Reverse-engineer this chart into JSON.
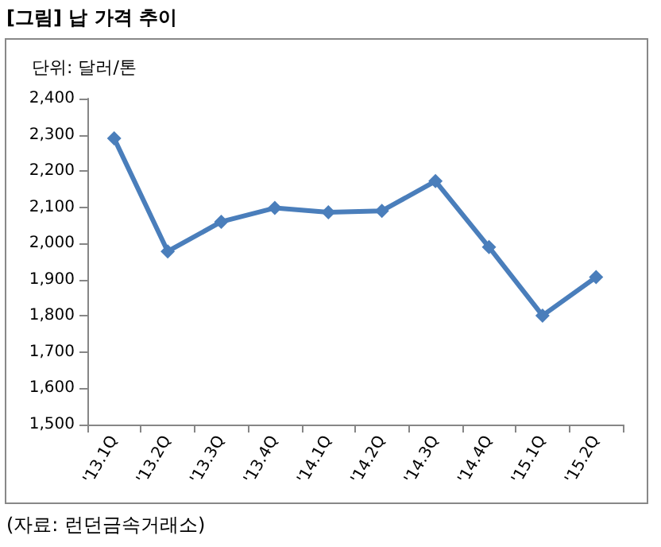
{
  "chart_data": {
    "type": "line",
    "title": "[그림] 납 가격 추이",
    "subtitle": "단위: 달러/톤",
    "annotations": [
      "(자료: 런던금속거래소)"
    ],
    "categories": [
      "'13.1Q",
      "'13.2Q",
      "'13.3Q",
      "'13.4Q",
      "'14.1Q",
      "'14.2Q",
      "'14.3Q",
      "'14.4Q",
      "'15.1Q",
      "'15.2Q"
    ],
    "series": [
      {
        "color": "#4a7ebb",
        "values": [
          2290,
          1978,
          2060,
          2098,
          2086,
          2090,
          2172,
          1990,
          1801,
          1907
        ]
      }
    ],
    "ylim": [
      1500,
      2400
    ],
    "yticks": [
      {
        "value": 1500,
        "label": "1,500"
      },
      {
        "value": 1600,
        "label": "1,600"
      },
      {
        "value": 1700,
        "label": "1,700"
      },
      {
        "value": 1800,
        "label": "1,800"
      },
      {
        "value": 1900,
        "label": "1,900"
      },
      {
        "value": 2000,
        "label": "2,000"
      },
      {
        "value": 2100,
        "label": "2,100"
      },
      {
        "value": 2200,
        "label": "2,200"
      },
      {
        "value": 2300,
        "label": "2,300"
      },
      {
        "value": 2400,
        "label": "2,400"
      }
    ],
    "grid": false,
    "marker": "diamond",
    "line_style": "solid"
  }
}
